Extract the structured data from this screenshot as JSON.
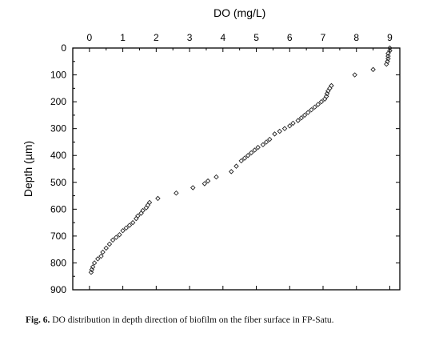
{
  "chart_data": {
    "type": "scatter",
    "title": "",
    "xlabel": "DO (mg/L)",
    "ylabel": "Depth (µm)",
    "x_axis_position": "top",
    "y_axis_inverted": true,
    "xlim": [
      -0.5,
      9.3
    ],
    "ylim": [
      0,
      900
    ],
    "x_ticks": [
      0,
      1,
      2,
      3,
      4,
      5,
      6,
      7,
      8,
      9
    ],
    "y_ticks": [
      0,
      100,
      200,
      300,
      400,
      500,
      600,
      700,
      800,
      900
    ],
    "marker": "open-diamond",
    "grid": false,
    "legend": "none",
    "series": [
      {
        "points": [
          [
            9.0,
            0
          ],
          [
            9.0,
            10
          ],
          [
            8.95,
            20
          ],
          [
            8.95,
            30
          ],
          [
            8.95,
            40
          ],
          [
            8.93,
            50
          ],
          [
            8.9,
            60
          ],
          [
            8.5,
            80
          ],
          [
            7.95,
            100
          ],
          [
            7.25,
            140
          ],
          [
            7.2,
            150
          ],
          [
            7.15,
            160
          ],
          [
            7.12,
            170
          ],
          [
            7.1,
            180
          ],
          [
            7.05,
            190
          ],
          [
            6.95,
            200
          ],
          [
            6.85,
            210
          ],
          [
            6.75,
            220
          ],
          [
            6.65,
            230
          ],
          [
            6.55,
            240
          ],
          [
            6.45,
            250
          ],
          [
            6.35,
            260
          ],
          [
            6.25,
            270
          ],
          [
            6.1,
            280
          ],
          [
            6.0,
            290
          ],
          [
            5.85,
            300
          ],
          [
            5.7,
            310
          ],
          [
            5.55,
            320
          ],
          [
            5.4,
            340
          ],
          [
            5.3,
            350
          ],
          [
            5.2,
            360
          ],
          [
            5.05,
            370
          ],
          [
            4.95,
            380
          ],
          [
            4.85,
            390
          ],
          [
            4.75,
            400
          ],
          [
            4.65,
            410
          ],
          [
            4.55,
            420
          ],
          [
            4.4,
            440
          ],
          [
            4.25,
            460
          ],
          [
            3.8,
            480
          ],
          [
            3.55,
            495
          ],
          [
            3.45,
            505
          ],
          [
            3.1,
            520
          ],
          [
            2.6,
            540
          ],
          [
            2.05,
            560
          ],
          [
            1.8,
            575
          ],
          [
            1.75,
            585
          ],
          [
            1.7,
            595
          ],
          [
            1.6,
            605
          ],
          [
            1.55,
            615
          ],
          [
            1.45,
            625
          ],
          [
            1.4,
            635
          ],
          [
            1.3,
            650
          ],
          [
            1.2,
            660
          ],
          [
            1.1,
            670
          ],
          [
            1.0,
            680
          ],
          [
            0.9,
            695
          ],
          [
            0.8,
            705
          ],
          [
            0.7,
            715
          ],
          [
            0.6,
            730
          ],
          [
            0.5,
            745
          ],
          [
            0.4,
            760
          ],
          [
            0.35,
            775
          ],
          [
            0.25,
            785
          ],
          [
            0.15,
            800
          ],
          [
            0.1,
            815
          ],
          [
            0.07,
            825
          ],
          [
            0.05,
            835
          ]
        ]
      }
    ]
  },
  "caption": {
    "label": "Fig. 6.",
    "text": " DO distribution in depth direction of biofilm on the fiber surface in FP-Satu."
  }
}
